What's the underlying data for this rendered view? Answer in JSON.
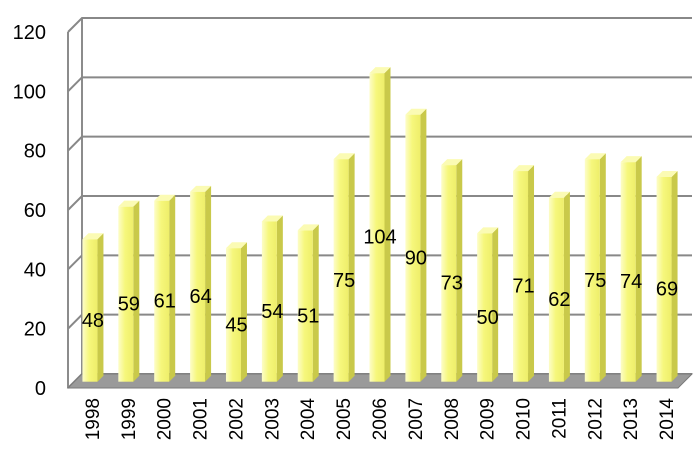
{
  "chart_data": {
    "type": "bar",
    "categories": [
      "1998",
      "1999",
      "2000",
      "2001",
      "2002",
      "2003",
      "2004",
      "2005",
      "2006",
      "2007",
      "2008",
      "2009",
      "2010",
      "2011",
      "2012",
      "2013",
      "2014"
    ],
    "values": [
      48,
      59,
      61,
      64,
      45,
      54,
      51,
      75,
      104,
      90,
      73,
      50,
      71,
      62,
      75,
      74,
      69
    ],
    "title": "",
    "xlabel": "",
    "ylabel": "",
    "ylim": [
      0,
      120
    ],
    "yticks": [
      "0",
      "20",
      "40",
      "60",
      "80",
      "100",
      "120"
    ],
    "grid": true,
    "legend": "none",
    "style": "3d",
    "colors": {
      "bar_front": "#f6f77c",
      "bar_side": "#c9c94a",
      "bar_top": "#fbfbb4",
      "grid": "#888888",
      "floor": "#9a9a9a",
      "wall": "#8c8c8c"
    }
  }
}
